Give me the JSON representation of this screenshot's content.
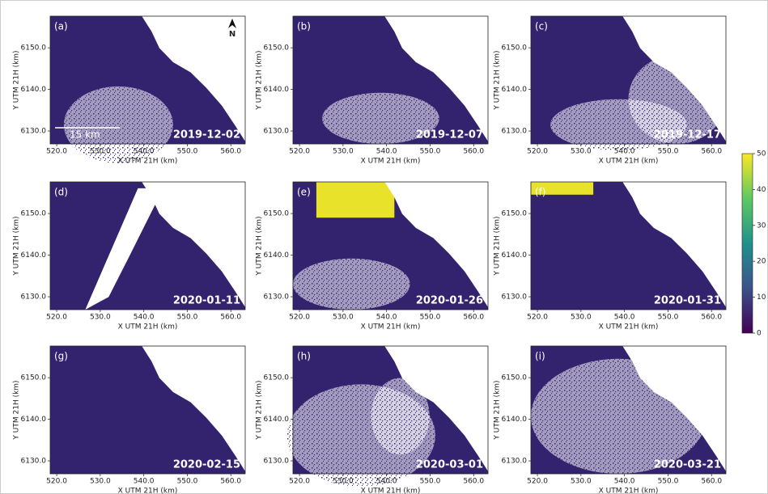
{
  "chart_data": [
    {
      "type": "image",
      "title": "(a)",
      "annotation": "2019-12-02",
      "scale_label": "15 km",
      "north_label": "N",
      "xlabel": "X UTM 21H (km)",
      "ylabel": "Y UTM 21H (km)",
      "xlim": [
        518.5,
        563.3
      ],
      "ylim": [
        6126.9,
        6157.6
      ],
      "xticks": [
        {
          "value": 520,
          "label": "520.0"
        },
        {
          "value": 530,
          "label": "530.0"
        },
        {
          "value": 540,
          "label": "540.0"
        },
        {
          "value": 550,
          "label": "550.0"
        },
        {
          "value": 560,
          "label": "560.0"
        }
      ],
      "yticks": [
        {
          "value": 6130,
          "label": "6130.0"
        },
        {
          "value": 6140,
          "label": "6140.0"
        },
        {
          "value": 6150,
          "label": "6150.0"
        }
      ]
    },
    {
      "type": "image",
      "title": "(b)",
      "annotation": "2019-12-07",
      "xlabel": "X UTM 21H (km)",
      "ylabel": "Y UTM 21H (km)",
      "xlim": [
        518.5,
        563.3
      ],
      "ylim": [
        6126.9,
        6157.6
      ],
      "xticks": [
        {
          "value": 520,
          "label": "520.0"
        },
        {
          "value": 530,
          "label": "530.0"
        },
        {
          "value": 540,
          "label": "540.0"
        },
        {
          "value": 550,
          "label": "550.0"
        },
        {
          "value": 560,
          "label": "560.0"
        }
      ],
      "yticks": [
        {
          "value": 6130,
          "label": "6130.0"
        },
        {
          "value": 6140,
          "label": "6140.0"
        },
        {
          "value": 6150,
          "label": "6150.0"
        }
      ]
    },
    {
      "type": "image",
      "title": "(c)",
      "annotation": "2019-12-17",
      "xlabel": "X UTM 21H (km)",
      "ylabel": "Y UTM 21H (km)",
      "xlim": [
        518.5,
        563.3
      ],
      "ylim": [
        6126.9,
        6157.6
      ],
      "xticks": [
        {
          "value": 520,
          "label": "520.0"
        },
        {
          "value": 530,
          "label": "530.0"
        },
        {
          "value": 540,
          "label": "540.0"
        },
        {
          "value": 550,
          "label": "550.0"
        },
        {
          "value": 560,
          "label": "560.0"
        }
      ],
      "yticks": [
        {
          "value": 6130,
          "label": "6130.0"
        },
        {
          "value": 6140,
          "label": "6140.0"
        },
        {
          "value": 6150,
          "label": "6150.0"
        }
      ]
    },
    {
      "type": "image",
      "title": "(d)",
      "annotation": "2020-01-11",
      "xlabel": "X UTM 21H (km)",
      "ylabel": "Y UTM 21H (km)",
      "xlim": [
        518.5,
        563.3
      ],
      "ylim": [
        6126.9,
        6157.6
      ],
      "xticks": [
        {
          "value": 520,
          "label": "520.0"
        },
        {
          "value": 530,
          "label": "530.0"
        },
        {
          "value": 540,
          "label": "540.0"
        },
        {
          "value": 550,
          "label": "550.0"
        },
        {
          "value": 560,
          "label": "560.0"
        }
      ],
      "yticks": [
        {
          "value": 6130,
          "label": "6130.0"
        },
        {
          "value": 6140,
          "label": "6140.0"
        },
        {
          "value": 6150,
          "label": "6150.0"
        }
      ]
    },
    {
      "type": "image",
      "title": "(e)",
      "annotation": "2020-01-26",
      "xlabel": "X UTM 21H (km)",
      "ylabel": "Y UTM 21H (km)",
      "xlim": [
        518.5,
        563.3
      ],
      "ylim": [
        6126.9,
        6157.6
      ],
      "xticks": [
        {
          "value": 520,
          "label": "520.0"
        },
        {
          "value": 530,
          "label": "530.0"
        },
        {
          "value": 540,
          "label": "540.0"
        },
        {
          "value": 550,
          "label": "550.0"
        },
        {
          "value": 560,
          "label": "560.0"
        }
      ],
      "yticks": [
        {
          "value": 6130,
          "label": "6130.0"
        },
        {
          "value": 6140,
          "label": "6140.0"
        },
        {
          "value": 6150,
          "label": "6150.0"
        }
      ]
    },
    {
      "type": "image",
      "title": "(f)",
      "annotation": "2020-01-31",
      "xlabel": "X UTM 21H (km)",
      "ylabel": "Y UTM 21H (km)",
      "xlim": [
        518.5,
        563.3
      ],
      "ylim": [
        6126.9,
        6157.6
      ],
      "xticks": [
        {
          "value": 520,
          "label": "520.0"
        },
        {
          "value": 530,
          "label": "530.0"
        },
        {
          "value": 540,
          "label": "540.0"
        },
        {
          "value": 550,
          "label": "550.0"
        },
        {
          "value": 560,
          "label": "560.0"
        }
      ],
      "yticks": [
        {
          "value": 6130,
          "label": "6130.0"
        },
        {
          "value": 6140,
          "label": "6140.0"
        },
        {
          "value": 6150,
          "label": "6150.0"
        }
      ]
    },
    {
      "type": "image",
      "title": "(g)",
      "annotation": "2020-02-15",
      "xlabel": "X UTM 21H (km)",
      "ylabel": "Y UTM 21H (km)",
      "xlim": [
        518.5,
        563.3
      ],
      "ylim": [
        6126.9,
        6157.6
      ],
      "xticks": [
        {
          "value": 520,
          "label": "520.0"
        },
        {
          "value": 530,
          "label": "530.0"
        },
        {
          "value": 540,
          "label": "540.0"
        },
        {
          "value": 550,
          "label": "550.0"
        },
        {
          "value": 560,
          "label": "560.0"
        }
      ],
      "yticks": [
        {
          "value": 6130,
          "label": "6130.0"
        },
        {
          "value": 6140,
          "label": "6140.0"
        },
        {
          "value": 6150,
          "label": "6150.0"
        }
      ]
    },
    {
      "type": "image",
      "title": "(h)",
      "annotation": "2020-03-01",
      "xlabel": "X UTM 21H (km)",
      "ylabel": "Y UTM 21H (km)",
      "xlim": [
        518.5,
        563.3
      ],
      "ylim": [
        6126.9,
        6157.6
      ],
      "xticks": [
        {
          "value": 520,
          "label": "520.0"
        },
        {
          "value": 530,
          "label": "530.0"
        },
        {
          "value": 540,
          "label": "540.0"
        },
        {
          "value": 550,
          "label": "550.0"
        },
        {
          "value": 560,
          "label": "560.0"
        }
      ],
      "yticks": [
        {
          "value": 6130,
          "label": "6130.0"
        },
        {
          "value": 6140,
          "label": "6140.0"
        },
        {
          "value": 6150,
          "label": "6150.0"
        }
      ]
    },
    {
      "type": "image",
      "title": "(i)",
      "annotation": "2020-03-21",
      "xlabel": "X UTM 21H (km)",
      "ylabel": "Y UTM 21H (km)",
      "xlim": [
        518.5,
        563.3
      ],
      "ylim": [
        6126.9,
        6157.6
      ],
      "xticks": [
        {
          "value": 520,
          "label": "520.0"
        },
        {
          "value": 530,
          "label": "530.0"
        },
        {
          "value": 540,
          "label": "540.0"
        },
        {
          "value": 550,
          "label": "550.0"
        },
        {
          "value": 560,
          "label": "560.0"
        }
      ],
      "yticks": [
        {
          "value": 6130,
          "label": "6130.0"
        },
        {
          "value": 6140,
          "label": "6140.0"
        },
        {
          "value": 6150,
          "label": "6150.0"
        }
      ]
    },
    {
      "type": "colorbar",
      "ylim": [
        0,
        50
      ],
      "yticks": [
        0,
        10,
        20,
        30,
        40,
        50
      ]
    }
  ]
}
